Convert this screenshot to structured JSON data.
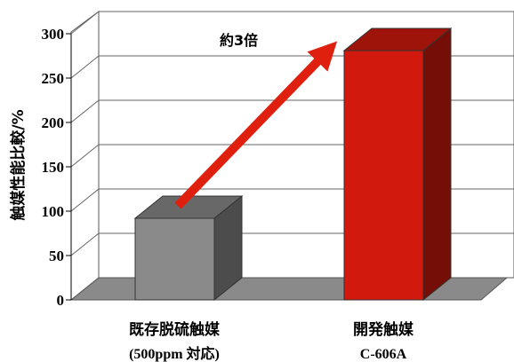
{
  "chart_data": {
    "type": "bar",
    "title": "",
    "ylabel": "触媒性能比較/%",
    "xlabel": "",
    "ylim": [
      0,
      300
    ],
    "yticks": [
      "0",
      "50",
      "100",
      "150",
      "200",
      "250",
      "300"
    ],
    "grid": true,
    "categories": [
      {
        "name": "既存脱硫触媒",
        "sub": "(500ppm 対応)"
      },
      {
        "name": "開発触媒",
        "sub": "C-606A"
      }
    ],
    "values": [
      92,
      281
    ],
    "colors": [
      "#8a8a8a",
      "#d2190d"
    ],
    "annotation": "約3倍"
  }
}
